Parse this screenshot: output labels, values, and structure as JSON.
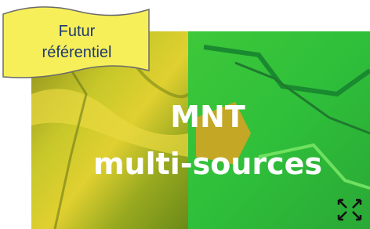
{
  "badge": {
    "lines": [
      "Futur",
      "référentiel"
    ]
  },
  "card": {
    "title_lines": [
      "MNT",
      "multi-sources"
    ]
  }
}
